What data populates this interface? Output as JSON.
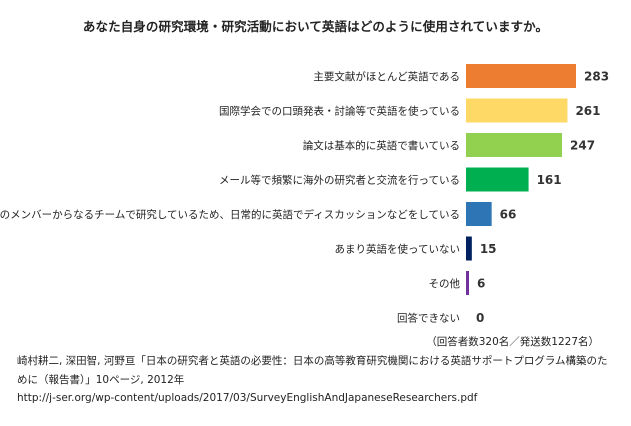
{
  "title": "あなた自身の研究環境・研究活動において英語はどのように使用されていますか。",
  "note": "（回答者数320名／発送数1227名）",
  "source": "崎村耕二, 深田智, 河野亘「日本の研究者と英語の必要性：日本の高等教育研究機関における英語サポートプログラム構築のために（報告書）」10ページ, 2012年",
  "url": "http://j-ser.org/wp-content/uploads/2017/03/SurveyEnglishAndJapaneseResearchers.pdf",
  "chart_data": {
    "type": "bar",
    "orientation": "horizontal",
    "title": "あなた自身の研究環境・研究活動において英語はどのように使用されていますか。",
    "xlabel": "",
    "ylabel": "",
    "grid": false,
    "legend": "none",
    "xlim": [
      0,
      283
    ],
    "categories": [
      "主要文献がほとんど英語である",
      "国際学会での口頭発表・討論等で英語を使っている",
      "論文は基本的に英語で書いている",
      "メール等で頻繁に海外の研究者と交流を行っている",
      "多国籍のメンバーからなるチームで研究しているため、日常的に英語でディスカッションなどをしている",
      "あまり英語を使っていない",
      "その他",
      "回答できない"
    ],
    "values": [
      283,
      261,
      247,
      161,
      66,
      15,
      6,
      0
    ],
    "colors": [
      "#ED7D31",
      "#FFD966",
      "#92D050",
      "#00B050",
      "#2E75B6",
      "#002060",
      "#7030A0",
      "#A5A5A5"
    ]
  }
}
